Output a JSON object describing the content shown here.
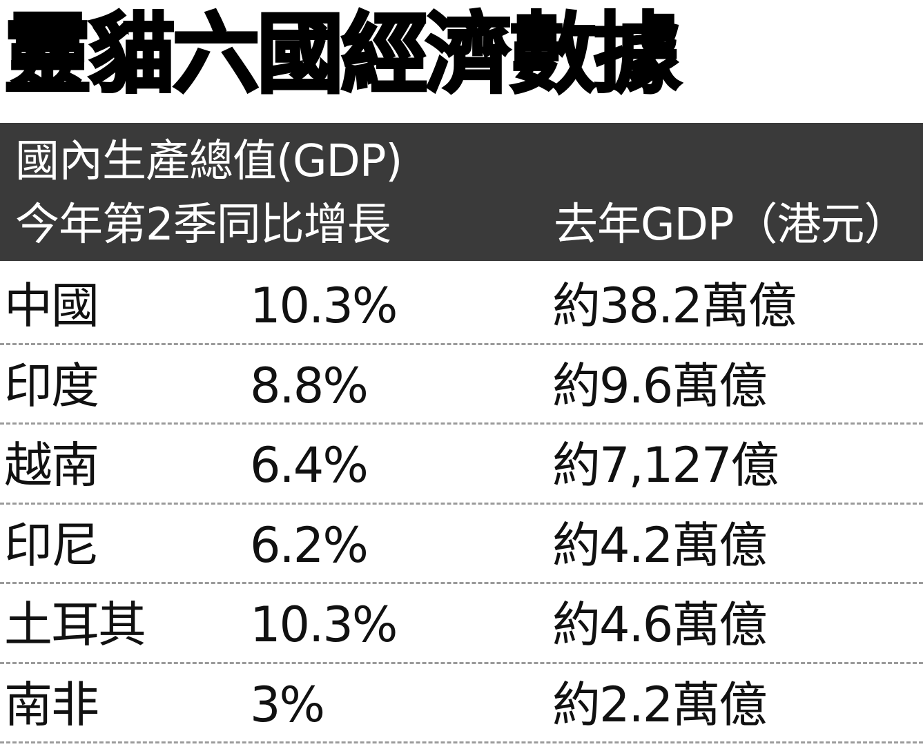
{
  "title": "靈貓六國經濟數據",
  "header": {
    "line1": "國內生產總值(GDP)",
    "col_growth": "今年第2季同比增長",
    "col_gdp": "去年GDP（港元）"
  },
  "chart_data": {
    "type": "table",
    "title": "靈貓六國經濟數據",
    "columns": [
      "",
      "今年第2季同比增長",
      "去年GDP（港元）"
    ],
    "rows": [
      {
        "country": "中國",
        "growth": "10.3%",
        "gdp": "約38.2萬億"
      },
      {
        "country": "印度",
        "growth": "8.8%",
        "gdp": "約9.6萬億"
      },
      {
        "country": "越南",
        "growth": "6.4%",
        "gdp": "約7,127億"
      },
      {
        "country": "印尼",
        "growth": "6.2%",
        "gdp": "約4.2萬億"
      },
      {
        "country": "土耳其",
        "growth": "10.3%",
        "gdp": "約4.6萬億"
      },
      {
        "country": "南非",
        "growth": "3%",
        "gdp": "約2.2萬億"
      }
    ]
  }
}
